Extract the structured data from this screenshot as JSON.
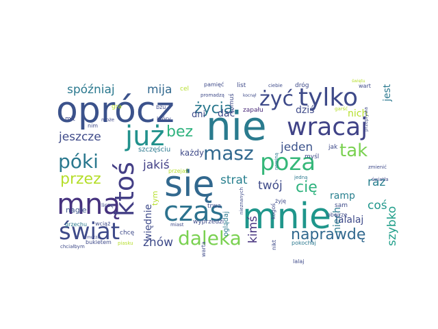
{
  "word_cloud": {
    "words": [
      {
        "text": "nie",
        "color": "#2a7b8e"
      },
      {
        "text": "oprócz",
        "color": "#3b528b"
      },
      {
        "text": "mnie",
        "color": "#1f968b"
      },
      {
        "text": "się",
        "color": "#31688e"
      },
      {
        "text": "wracaj",
        "color": "#404387"
      },
      {
        "text": "już",
        "color": "#21918c"
      },
      {
        "text": "tylko",
        "color": "#3e4a89"
      },
      {
        "text": "czas",
        "color": "#2c728e"
      },
      {
        "text": "mną",
        "color": "#46327e"
      },
      {
        "text": "poza",
        "color": "#35b779"
      },
      {
        "text": "świat",
        "color": "#3e4a89"
      },
      {
        "text": "daleka",
        "color": "#7ad151"
      },
      {
        "text": "ktoś",
        "color": "#433e85"
      },
      {
        "text": "masz",
        "color": "#31688e"
      },
      {
        "text": "żyć",
        "color": "#3e4a89"
      },
      {
        "text": "życia",
        "color": "#2a788e"
      },
      {
        "text": "naprawdę",
        "color": "#31688e"
      },
      {
        "text": "póki",
        "color": "#2a788e"
      },
      {
        "text": "tak",
        "color": "#7ad151"
      },
      {
        "text": "bez",
        "color": "#2db27d"
      },
      {
        "text": "przez",
        "color": "#b5de2b"
      },
      {
        "text": "spóźniaj",
        "color": "#2a788e"
      },
      {
        "text": "jeszcze",
        "color": "#3e4a89"
      },
      {
        "text": "mija",
        "color": "#31688e"
      },
      {
        "text": "jakiś",
        "color": "#424086"
      },
      {
        "text": "strat",
        "color": "#277f8e"
      },
      {
        "text": "jeden",
        "color": "#3b528b"
      },
      {
        "text": "raz",
        "color": "#277f8e"
      },
      {
        "text": "twój",
        "color": "#3e4a89"
      },
      {
        "text": "cię",
        "color": "#2db27d"
      },
      {
        "text": "coś",
        "color": "#1f968b"
      },
      {
        "text": "kimś",
        "color": "#46327e"
      },
      {
        "text": "znów",
        "color": "#3e4a89"
      },
      {
        "text": "szybko",
        "color": "#1f9e89"
      },
      {
        "text": "lalalaj",
        "color": "#3e4a89"
      },
      {
        "text": "niech",
        "color": "#2a788e"
      },
      {
        "text": "więdnie",
        "color": "#3e4a89"
      },
      {
        "text": "ramp",
        "color": "#277f8e"
      },
      {
        "text": "jest",
        "color": "#2a788e"
      },
      {
        "text": "nich",
        "color": "#b5de2b"
      },
      {
        "text": "dziś",
        "color": "#3e4a89"
      },
      {
        "text": "dać",
        "color": "#3e4a89"
      },
      {
        "text": "dni",
        "color": "#3e4a89"
      },
      {
        "text": "każdy",
        "color": "#3e4a89"
      },
      {
        "text": "zapału",
        "color": "#482878"
      },
      {
        "text": "komuś",
        "color": "#3e4a89"
      },
      {
        "text": "nagle",
        "color": "#3b528b"
      },
      {
        "text": "tym",
        "color": "#b5de2b"
      },
      {
        "text": "oglądaj",
        "color": "#2a788e"
      },
      {
        "text": "szczęściu",
        "color": "#2a788e"
      },
      {
        "text": "trwa",
        "color": "#3e4a89"
      },
      {
        "text": "myśl",
        "color": "#3e4a89"
      },
      {
        "text": "sam",
        "color": "#3e4a89"
      },
      {
        "text": "wyprzedzi",
        "color": "#3e4a89"
      },
      {
        "text": "pamięć",
        "color": "#3e4a89"
      },
      {
        "text": "list",
        "color": "#3e4a89"
      },
      {
        "text": "ciebie",
        "color": "#3e4a89"
      },
      {
        "text": "dróg",
        "color": "#3e4a89"
      },
      {
        "text": "wart",
        "color": "#3e4a89"
      },
      {
        "text": "promadzą",
        "color": "#3e4a89"
      },
      {
        "text": "kocnął",
        "color": "#3e4a89"
      },
      {
        "text": "świętu",
        "color": "#b5de2b"
      },
      {
        "text": "bzu",
        "color": "#3e4a89"
      },
      {
        "text": "gra",
        "color": "#b5de2b"
      },
      {
        "text": "cel",
        "color": "#b5de2b"
      },
      {
        "text": "mit",
        "color": "#3e4a89"
      },
      {
        "text": "nim",
        "color": "#3e4a89"
      },
      {
        "text": "może",
        "color": "#3e4a89"
      },
      {
        "text": "który",
        "color": "#3e4a89"
      },
      {
        "text": "grzechu",
        "color": "#2a788e"
      },
      {
        "text": "wciąż",
        "color": "#3e4a89"
      },
      {
        "text": "liczę",
        "color": "#3e4a89"
      },
      {
        "text": "przejaś",
        "color": "#b5de2b"
      },
      {
        "text": "warta",
        "color": "#3e4a89"
      },
      {
        "text": "jak",
        "color": "#3e4a89"
      },
      {
        "text": "nieznanych",
        "color": "#3e4a89"
      },
      {
        "text": "garść",
        "color": "#b5de2b"
      },
      {
        "text": "przepływa",
        "color": "#3e4a89"
      },
      {
        "text": "zmienić",
        "color": "#3e4a89"
      },
      {
        "text": "światła",
        "color": "#3e4a89"
      },
      {
        "text": "nowiną",
        "color": "#2a788e"
      },
      {
        "text": "jedną",
        "color": "#2a788e"
      },
      {
        "text": "żyję",
        "color": "#3e4a89"
      },
      {
        "text": "kogoś",
        "color": "#3e4a89"
      },
      {
        "text": "obejrzę",
        "color": "#3e4a89"
      },
      {
        "text": "nikt",
        "color": "#3e4a89"
      },
      {
        "text": "pokochaj",
        "color": "#2a788e"
      },
      {
        "text": "lalaj",
        "color": "#3e4a89"
      },
      {
        "text": "miast",
        "color": "#3e4a89"
      },
      {
        "text": "chcę",
        "color": "#3e4a89"
      },
      {
        "text": "chciałbym",
        "color": "#3e4a89"
      },
      {
        "text": "bukietem",
        "color": "#3e4a89"
      },
      {
        "text": "piasku",
        "color": "#b5de2b"
      },
      {
        "text": "murza",
        "color": "#3e4a89"
      }
    ]
  }
}
